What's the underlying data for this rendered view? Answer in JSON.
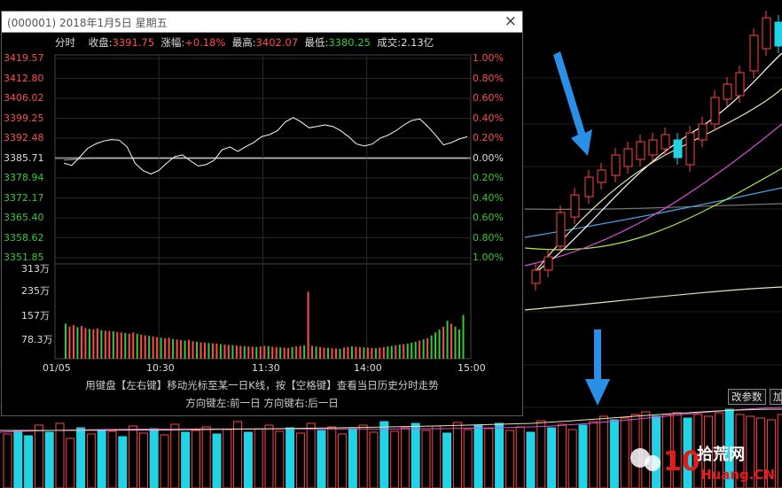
{
  "popup": {
    "title": "(000001) 2018年1月5日 星期五",
    "close_label": "×",
    "info": {
      "fenshi": "分时",
      "close_label": "收盘:",
      "close_value": "3391.75",
      "change_label": "涨幅:",
      "change_value": "+0.18%",
      "high_label": "最高:",
      "high_value": "3402.07",
      "low_label": "最低:",
      "low_value": "3380.25",
      "turnover_label": "成交:",
      "turnover_value": "2.13亿"
    },
    "hint1": "用键盘【左右键】移动光标至某一日K线，按【空格键】查看当日历史分时走势",
    "hint2": "方向键左:前一日   方向键右:后一日"
  },
  "buttons": {
    "change_params": "改参数",
    "add": "加"
  },
  "chart_data": {
    "type": "line",
    "price_axis_left": [
      "3419.57",
      "3412.80",
      "3406.02",
      "3399.25",
      "3392.48",
      "3385.71",
      "3378.94",
      "3372.17",
      "3365.40",
      "3358.62",
      "3351.85"
    ],
    "percent_axis_right": [
      "1.00%",
      "0.80%",
      "0.60%",
      "0.40%",
      "0.20%",
      "0.00%",
      "0.20%",
      "0.40%",
      "0.60%",
      "0.80%",
      "1.00%"
    ],
    "volume_axis": [
      "313万",
      "235万",
      "157万",
      "78.3万"
    ],
    "time_axis": [
      "01/05",
      "10:30",
      "11:30",
      "14:00",
      "15:00"
    ],
    "prev_close": 3385.71,
    "ylim": [
      3351.85,
      3419.57
    ],
    "price_series": [
      3384.0,
      3383.2,
      3386.0,
      3389.0,
      3390.5,
      3391.5,
      3392.0,
      3391.8,
      3389.5,
      3384.0,
      3381.5,
      3380.3,
      3381.5,
      3384.0,
      3386.2,
      3386.8,
      3384.8,
      3383.0,
      3383.5,
      3385.0,
      3388.5,
      3389.5,
      3388.0,
      3389.6,
      3391.0,
      3393.0,
      3393.7,
      3395.0,
      3398.0,
      3399.5,
      3398.0,
      3396.0,
      3396.5,
      3397.0,
      3396.5,
      3395.0,
      3393.0,
      3390.5,
      3389.8,
      3390.5,
      3392.5,
      3393.5,
      3395.0,
      3397.0,
      3398.5,
      3399.0,
      3396.5,
      3393.5,
      3390.2,
      3391.0,
      3392.2,
      3393.0
    ],
    "avg_series": [
      3385.0,
      3385.2,
      3385.4,
      3385.6,
      3385.7,
      3385.7,
      3385.7,
      3385.7,
      3385.7,
      3385.7,
      3385.7,
      3385.7,
      3385.7,
      3385.7,
      3385.7,
      3385.7,
      3385.7,
      3385.7,
      3385.7,
      3385.7,
      3385.7,
      3385.7,
      3385.7,
      3385.7,
      3385.7,
      3385.7,
      3385.7,
      3385.7,
      3385.7,
      3385.7,
      3385.7,
      3385.7,
      3385.7,
      3385.7,
      3385.7,
      3385.7,
      3385.7,
      3385.7,
      3385.7,
      3385.7,
      3385.7,
      3385.7,
      3385.7,
      3385.7,
      3385.7,
      3385.7,
      3385.7,
      3385.7,
      3385.7,
      3385.7,
      3385.7,
      3385.7
    ],
    "volume_max": 313,
    "volume_series": [
      120,
      110,
      115,
      108,
      112,
      105,
      102,
      100,
      104,
      98,
      96,
      95,
      94,
      92,
      90,
      88,
      86,
      90,
      85,
      82,
      80,
      78,
      76,
      74,
      72,
      70,
      72,
      68,
      66,
      64,
      62,
      65,
      60,
      58,
      56,
      55,
      54,
      53,
      52,
      50,
      48,
      47,
      46,
      45,
      44,
      43,
      42,
      41,
      40,
      42,
      44,
      43,
      41,
      40,
      39,
      38,
      37,
      40,
      42,
      44,
      45,
      230,
      44,
      42,
      40,
      38,
      37,
      36,
      35,
      34,
      38,
      40,
      42,
      41,
      40,
      39,
      38,
      37,
      36,
      38,
      40,
      42,
      44,
      46,
      48,
      50,
      52,
      55,
      58,
      62,
      66,
      70,
      80,
      90,
      100,
      110,
      130,
      120,
      110,
      100,
      150
    ]
  }
}
